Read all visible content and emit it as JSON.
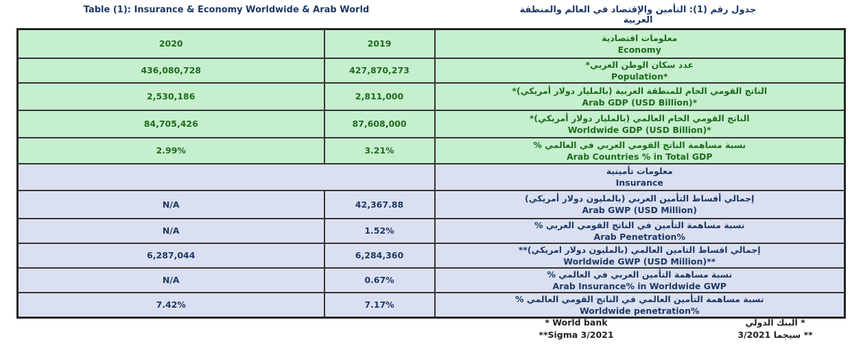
{
  "title_en": "Table (1): Insurance & Economy  Worldwide & Arab World",
  "title_ar": "جدول رقم (1): التأمين والإقتصاد في العالم والمنطقة العربية",
  "economy": {
    "header": {
      "ar": "معلومات اقتصادية",
      "en": "Economy",
      "col2020": "2020",
      "col2019": "2019"
    },
    "rows": [
      {
        "ar": "عدد سكان الوطن العربي*",
        "en": "Population*",
        "v2020": "436,080,728",
        "v2019": "427,870,273"
      },
      {
        "ar": "الناتج القومي الخام للمنطقة العربية (بالمليار دولار أمريكي)*",
        "en": "Arab GDP (USD Billion)*",
        "v2020": "2,530,186",
        "v2019": "2,811,000"
      },
      {
        "ar": "الناتج القومي الخام العالمي (بالمليار دولار أمريكي)*",
        "en": "Worldwide GDP (USD Billion)*",
        "v2020": "84,705,426",
        "v2019": "87,608,000"
      },
      {
        "ar": "نسبة مساهمة الناتج القومي العربي في العالمي %",
        "en": "Arab Countries % in Total GDP",
        "v2020": "2.99%",
        "v2019": "3.21%"
      }
    ]
  },
  "insurance": {
    "header": {
      "ar": "معلومات تأمينية",
      "en": "Insurance"
    },
    "rows": [
      {
        "ar": "إجمالي أقساط التأمين العربي (بالمليون دولار أمريكي)",
        "en": "Arab GWP (USD Million)",
        "v2020": "N/A",
        "v2019": "42,367.88"
      },
      {
        "ar": "نسبة مساهمة التأمين في الناتج القومي العربي %",
        "en": "Arab Penetration%",
        "v2020": "N/A",
        "v2019": "1.52%"
      },
      {
        "ar": "إجمالي اقساط التامين العالمي (بالمليون دولار امريكي)**",
        "en": "Worldwide GWP (USD Million)**",
        "v2020": "6,287,044",
        "v2019": "6,284,360"
      },
      {
        "ar": "نسبة مساهمة التأمين العربي في العالمي %",
        "en": "Arab Insurance% in Worldwide GWP",
        "v2020": "N/A",
        "v2019": "0.67%"
      },
      {
        "ar": "نسبة مساهمة التأمين العالمي في الناتج القومي العالمي %",
        "en": "Worldwide penetration%",
        "v2020": "7.42%",
        "v2019": "7.17%"
      }
    ]
  },
  "footnotes": {
    "en1": "* World bank",
    "en2": "**Sigma 3/2021",
    "ar1": "* البنك الدولي",
    "ar2": "** سيجما 3/2021"
  }
}
